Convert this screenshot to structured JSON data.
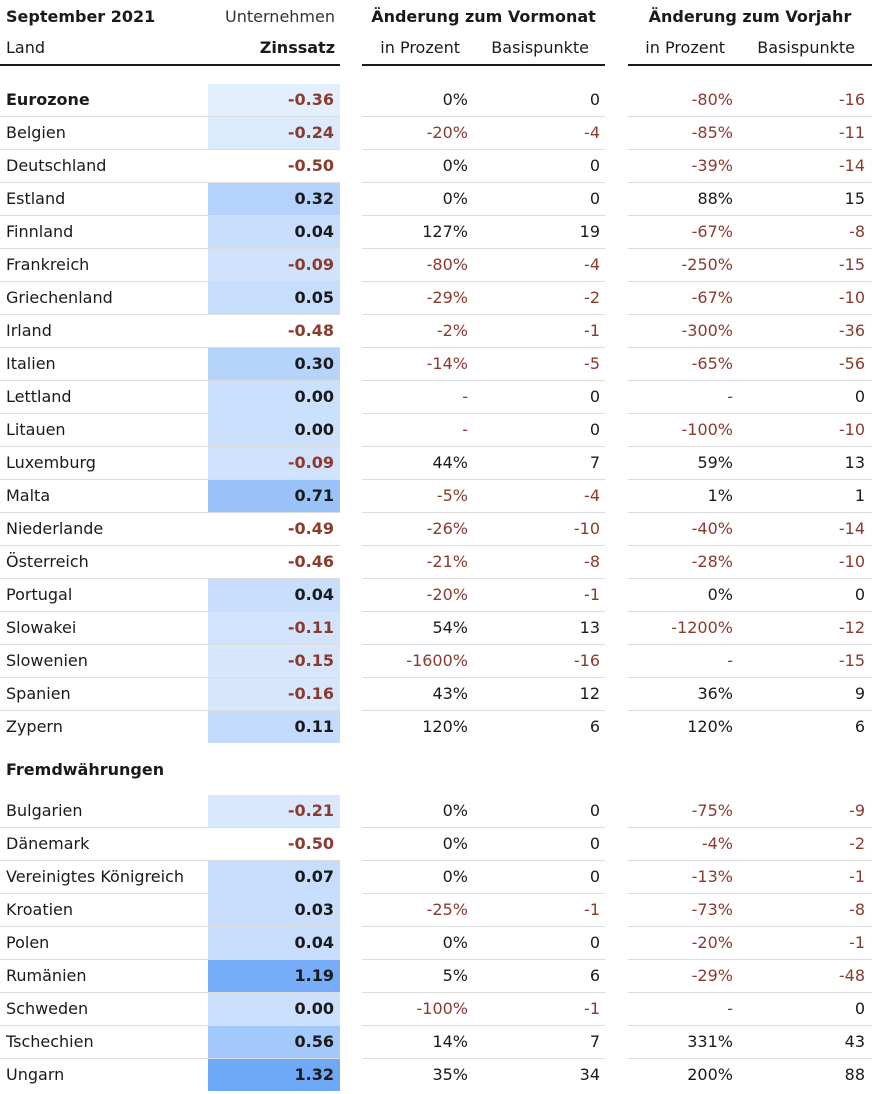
{
  "header": {
    "title": "September 2021",
    "unternehmen": "Unternehmen",
    "land": "Land",
    "zinssatz": "Zinssatz",
    "group_vormonat": "Änderung zum Vormonat",
    "group_vorjahr": "Änderung zum Vorjahr",
    "in_prozent": "in Prozent",
    "basispunkte": "Basispunkte"
  },
  "colors": {
    "negative_text": "#8b3a2e",
    "positive_text": "#1a1a1a",
    "heat_max": "#6ea8f7"
  },
  "sections": [
    {
      "name": "Eurozone",
      "rows": [
        {
          "land": "Eurozone",
          "zins": "-0.36",
          "vm_pct": "0%",
          "vm_bp": "0",
          "vj_pct": "-80%",
          "vj_bp": "-16"
        },
        {
          "land": "Belgien",
          "zins": "-0.24",
          "vm_pct": "-20%",
          "vm_bp": "-4",
          "vj_pct": "-85%",
          "vj_bp": "-11"
        },
        {
          "land": "Deutschland",
          "zins": "-0.50",
          "vm_pct": "0%",
          "vm_bp": "0",
          "vj_pct": "-39%",
          "vj_bp": "-14"
        },
        {
          "land": "Estland",
          "zins": "0.32",
          "vm_pct": "0%",
          "vm_bp": "0",
          "vj_pct": "88%",
          "vj_bp": "15"
        },
        {
          "land": "Finnland",
          "zins": "0.04",
          "vm_pct": "127%",
          "vm_bp": "19",
          "vj_pct": "-67%",
          "vj_bp": "-8"
        },
        {
          "land": "Frankreich",
          "zins": "-0.09",
          "vm_pct": "-80%",
          "vm_bp": "-4",
          "vj_pct": "-250%",
          "vj_bp": "-15"
        },
        {
          "land": "Griechenland",
          "zins": "0.05",
          "vm_pct": "-29%",
          "vm_bp": "-2",
          "vj_pct": "-67%",
          "vj_bp": "-10"
        },
        {
          "land": "Irland",
          "zins": "-0.48",
          "vm_pct": "-2%",
          "vm_bp": "-1",
          "vj_pct": "-300%",
          "vj_bp": "-36"
        },
        {
          "land": "Italien",
          "zins": "0.30",
          "vm_pct": "-14%",
          "vm_bp": "-5",
          "vj_pct": "-65%",
          "vj_bp": "-56"
        },
        {
          "land": "Lettland",
          "zins": "0.00",
          "vm_pct": "-",
          "vm_bp": "0",
          "vj_pct": "-",
          "vj_bp": "0"
        },
        {
          "land": "Litauen",
          "zins": "0.00",
          "vm_pct": "-",
          "vm_bp": "0",
          "vj_pct": "-100%",
          "vj_bp": "-10"
        },
        {
          "land": "Luxemburg",
          "zins": "-0.09",
          "vm_pct": "44%",
          "vm_bp": "7",
          "vj_pct": "59%",
          "vj_bp": "13"
        },
        {
          "land": "Malta",
          "zins": "0.71",
          "vm_pct": "-5%",
          "vm_bp": "-4",
          "vj_pct": "1%",
          "vj_bp": "1"
        },
        {
          "land": "Niederlande",
          "zins": "-0.49",
          "vm_pct": "-26%",
          "vm_bp": "-10",
          "vj_pct": "-40%",
          "vj_bp": "-14"
        },
        {
          "land": "Österreich",
          "zins": "-0.46",
          "vm_pct": "-21%",
          "vm_bp": "-8",
          "vj_pct": "-28%",
          "vj_bp": "-10"
        },
        {
          "land": "Portugal",
          "zins": "0.04",
          "vm_pct": "-20%",
          "vm_bp": "-1",
          "vj_pct": "0%",
          "vj_bp": "0"
        },
        {
          "land": "Slowakei",
          "zins": "-0.11",
          "vm_pct": "54%",
          "vm_bp": "13",
          "vj_pct": "-1200%",
          "vj_bp": "-12"
        },
        {
          "land": "Slowenien",
          "zins": "-0.15",
          "vm_pct": "-1600%",
          "vm_bp": "-16",
          "vj_pct": "-",
          "vj_bp": "-15"
        },
        {
          "land": "Spanien",
          "zins": "-0.16",
          "vm_pct": "43%",
          "vm_bp": "12",
          "vj_pct": "36%",
          "vj_bp": "9"
        },
        {
          "land": "Zypern",
          "zins": "0.11",
          "vm_pct": "120%",
          "vm_bp": "6",
          "vj_pct": "120%",
          "vj_bp": "6"
        }
      ]
    },
    {
      "name": "Fremdwährungen",
      "rows": [
        {
          "land": "Bulgarien",
          "zins": "-0.21",
          "vm_pct": "0%",
          "vm_bp": "0",
          "vj_pct": "-75%",
          "vj_bp": "-9"
        },
        {
          "land": "Dänemark",
          "zins": "-0.50",
          "vm_pct": "0%",
          "vm_bp": "0",
          "vj_pct": "-4%",
          "vj_bp": "-2"
        },
        {
          "land": "Vereinigtes Königreich",
          "zins": "0.07",
          "vm_pct": "0%",
          "vm_bp": "0",
          "vj_pct": "-13%",
          "vj_bp": "-1"
        },
        {
          "land": "Kroatien",
          "zins": "0.03",
          "vm_pct": "-25%",
          "vm_bp": "-1",
          "vj_pct": "-73%",
          "vj_bp": "-8"
        },
        {
          "land": "Polen",
          "zins": "0.04",
          "vm_pct": "0%",
          "vm_bp": "0",
          "vj_pct": "-20%",
          "vj_bp": "-1"
        },
        {
          "land": "Rumänien",
          "zins": "1.19",
          "vm_pct": "5%",
          "vm_bp": "6",
          "vj_pct": "-29%",
          "vj_bp": "-48"
        },
        {
          "land": "Schweden",
          "zins": "0.00",
          "vm_pct": "-100%",
          "vm_bp": "-1",
          "vj_pct": "-",
          "vj_bp": "0"
        },
        {
          "land": "Tschechien",
          "zins": "0.56",
          "vm_pct": "14%",
          "vm_bp": "7",
          "vj_pct": "331%",
          "vj_bp": "43"
        },
        {
          "land": "Ungarn",
          "zins": "1.32",
          "vm_pct": "35%",
          "vm_bp": "34",
          "vj_pct": "200%",
          "vj_bp": "88"
        }
      ]
    }
  ]
}
